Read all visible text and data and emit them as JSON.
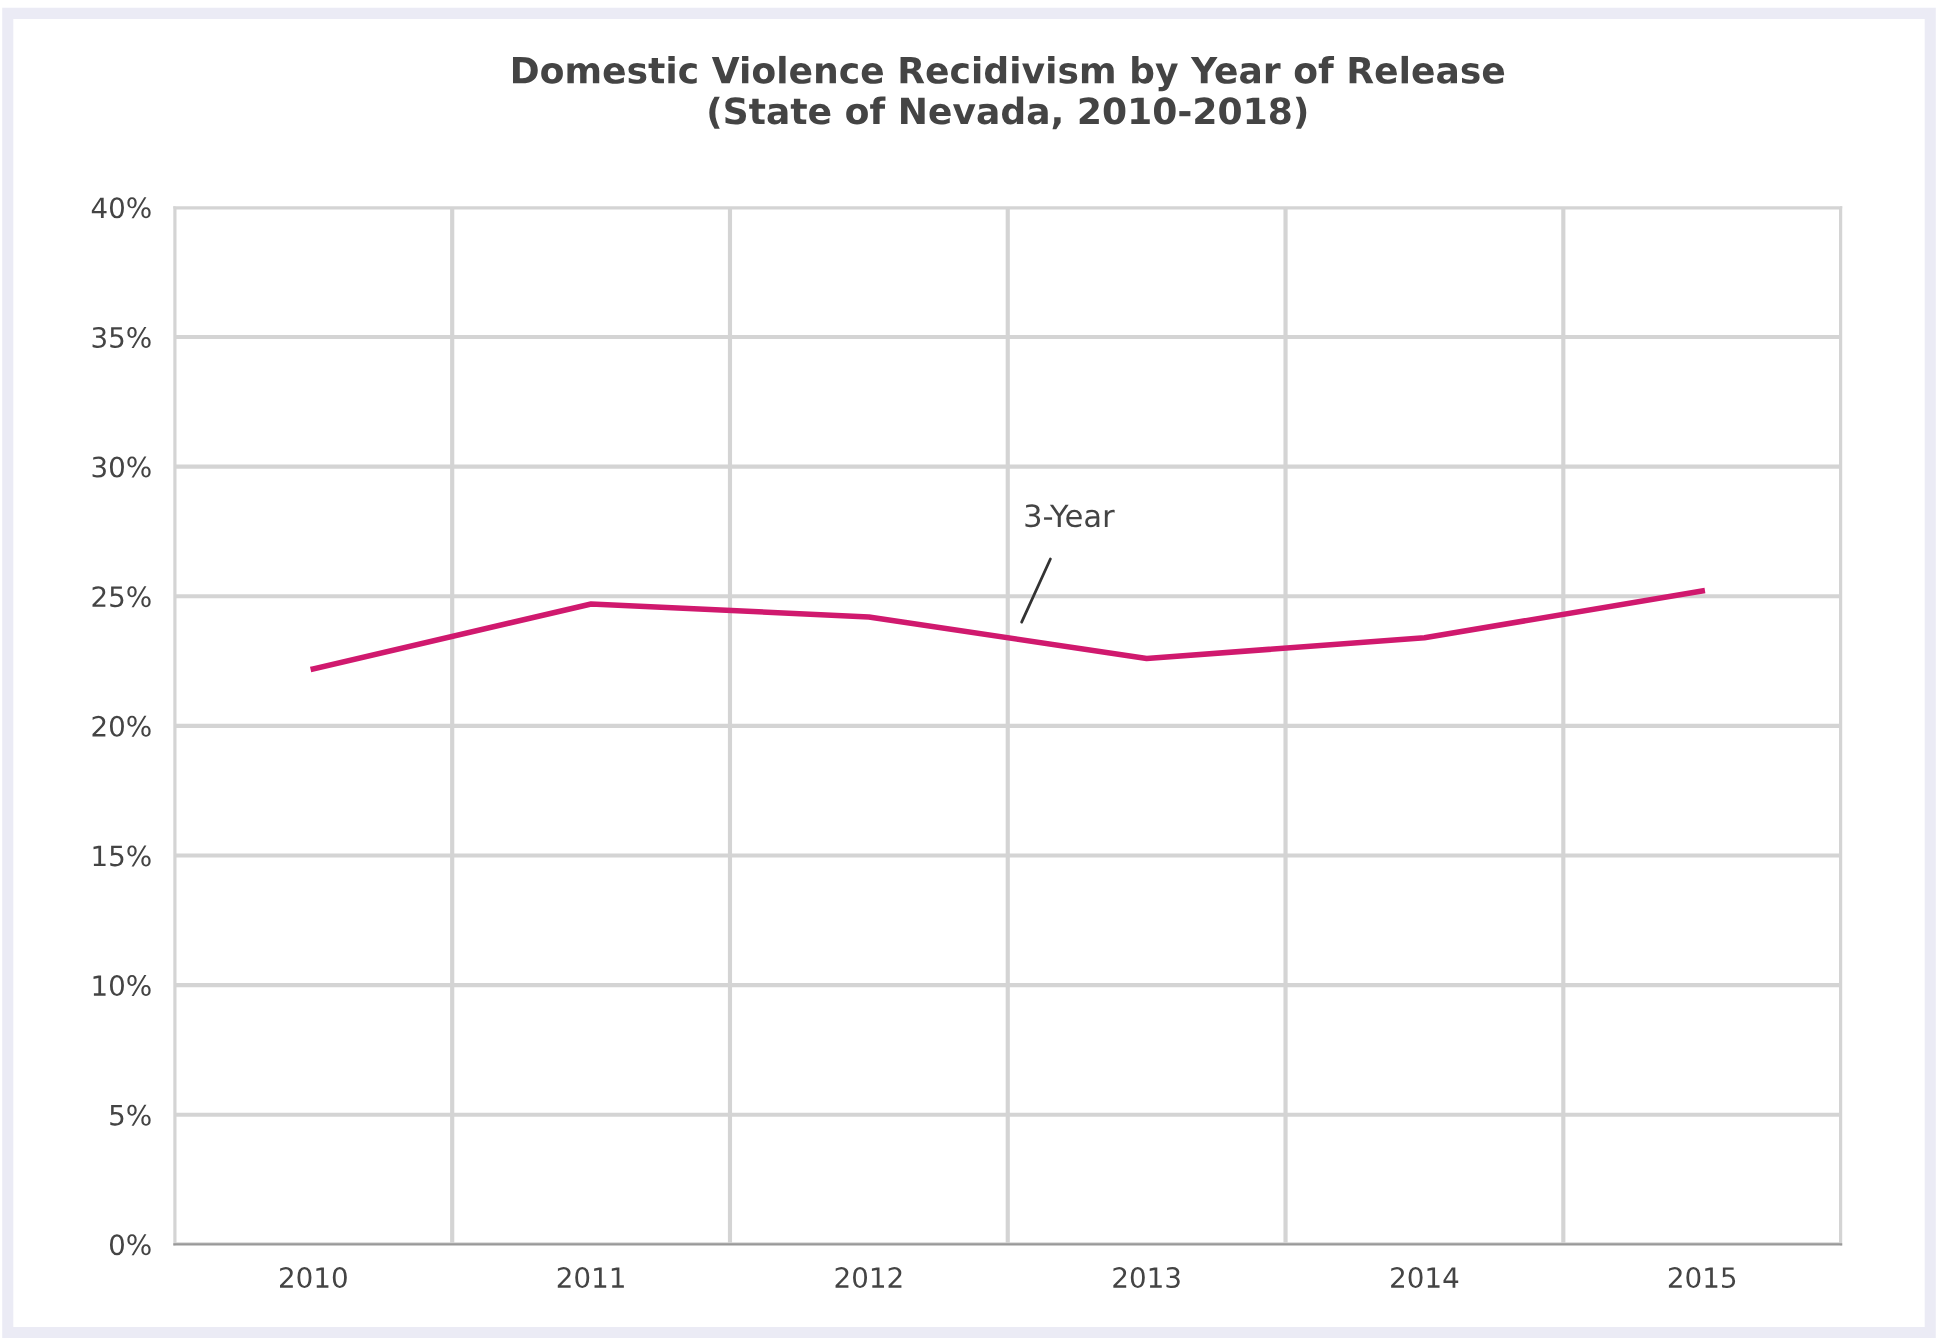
{
  "chart_data": {
    "type": "line",
    "title": "Domestic Violence Recidivism by Year of Release\n(State of Nevada, 2010-2018)",
    "categories": [
      "2010",
      "2011",
      "2012",
      "2013",
      "2014",
      "2015"
    ],
    "series": [
      {
        "name": "3-Year",
        "color": "#d0196e",
        "values": [
          22.2,
          24.7,
          24.2,
          22.6,
          23.4,
          25.2
        ]
      }
    ],
    "ylim": [
      0,
      40
    ],
    "yticks": [
      {
        "value": 0,
        "label": "0%"
      },
      {
        "value": 5,
        "label": "5%"
      },
      {
        "value": 10,
        "label": "10%"
      },
      {
        "value": 15,
        "label": "15%"
      },
      {
        "value": 20,
        "label": "20%"
      },
      {
        "value": 25,
        "label": "25%"
      },
      {
        "value": 30,
        "label": "30%"
      },
      {
        "value": 35,
        "label": "35%"
      },
      {
        "value": 40,
        "label": "40%"
      }
    ],
    "grid": true,
    "marker": "none",
    "line_style": "solid",
    "legend": false
  }
}
